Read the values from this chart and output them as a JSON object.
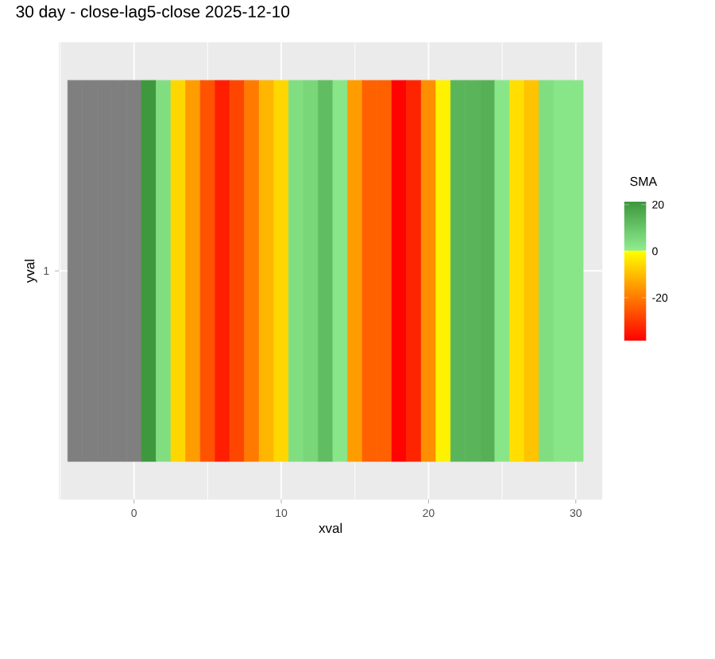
{
  "chart_data": {
    "type": "heatmap",
    "title": "30 day - close-lag5-close  2025-12-10",
    "xlabel": "xval",
    "ylabel": "yval",
    "clabel": "SMA",
    "x": [
      -4,
      -3,
      -2,
      -1,
      0,
      1,
      2,
      3,
      4,
      5,
      6,
      7,
      8,
      9,
      10,
      11,
      12,
      13,
      14,
      15,
      16,
      17,
      18,
      19,
      20,
      21,
      22,
      23,
      24,
      25,
      26,
      27,
      28,
      29,
      30
    ],
    "y_categories": [
      "1"
    ],
    "cells": [
      [
        null,
        null,
        null,
        null,
        null,
        21,
        4,
        -6,
        -15,
        -26,
        -34,
        -28,
        -20,
        -11,
        -6,
        4,
        6,
        12,
        2,
        -15,
        -24,
        -24,
        -38,
        -33,
        -17,
        -2,
        14,
        14,
        15,
        2,
        -5,
        -9,
        4,
        2,
        2
      ]
    ],
    "xlim": [
      -5.1,
      31.8
    ],
    "xticks": [
      0,
      10,
      20,
      30
    ],
    "clim": [
      -38.5,
      21.6
    ],
    "cticks": [
      -20,
      0,
      20
    ],
    "grid": true
  }
}
